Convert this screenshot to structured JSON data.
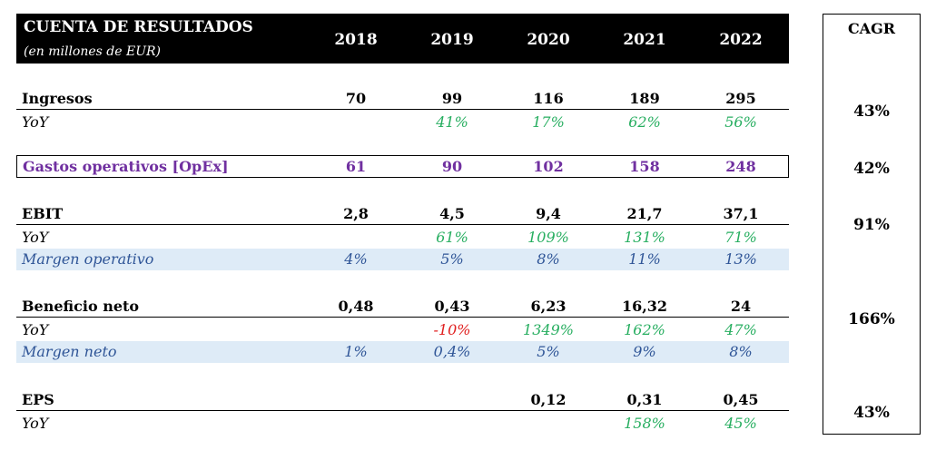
{
  "header": {
    "title": "CUENTA DE RESULTADOS",
    "subtitle": "(en millones de EUR)",
    "years": [
      "2018",
      "2019",
      "2020",
      "2021",
      "2022"
    ]
  },
  "cagr": {
    "title": "CAGR",
    "values": [
      "43%",
      "42%",
      "91%",
      "166%",
      "43%"
    ]
  },
  "rows": {
    "ingresos": {
      "label": "Ingresos",
      "values": [
        "70",
        "99",
        "116",
        "189",
        "295"
      ]
    },
    "ingresos_yoy": {
      "label": "YoY",
      "values": [
        "",
        "41%",
        "17%",
        "62%",
        "56%"
      ]
    },
    "opex": {
      "label": "Gastos operativos [OpEx]",
      "values": [
        "61",
        "90",
        "102",
        "158",
        "248"
      ]
    },
    "ebit": {
      "label": "EBIT",
      "values": [
        "2,8",
        "4,5",
        "9,4",
        "21,7",
        "37,1"
      ]
    },
    "ebit_yoy": {
      "label": "YoY",
      "values": [
        "",
        "61%",
        "109%",
        "131%",
        "71%"
      ]
    },
    "margen_op": {
      "label": "Margen operativo",
      "values": [
        "4%",
        "5%",
        "8%",
        "11%",
        "13%"
      ]
    },
    "beneficio": {
      "label": "Beneficio neto",
      "values": [
        "0,48",
        "0,43",
        "6,23",
        "16,32",
        "24"
      ]
    },
    "beneficio_yoy": {
      "label": "YoY",
      "values": [
        "",
        "-10%",
        "1349%",
        "162%",
        "47%"
      ]
    },
    "margen_neto": {
      "label": "Margen neto",
      "values": [
        "1%",
        "0,4%",
        "5%",
        "9%",
        "8%"
      ]
    },
    "eps": {
      "label": "EPS",
      "values": [
        "",
        "",
        "0,12",
        "0,31",
        "0,45"
      ]
    },
    "eps_yoy": {
      "label": "YoY",
      "values": [
        "",
        "",
        "",
        "158%",
        "45%"
      ]
    }
  },
  "colors": {
    "header_bg": "#000000",
    "positive": "#27ae60",
    "negative": "#e02020",
    "opex": "#7030a0",
    "margin": "#2f5597",
    "shading": "#deebf7"
  }
}
